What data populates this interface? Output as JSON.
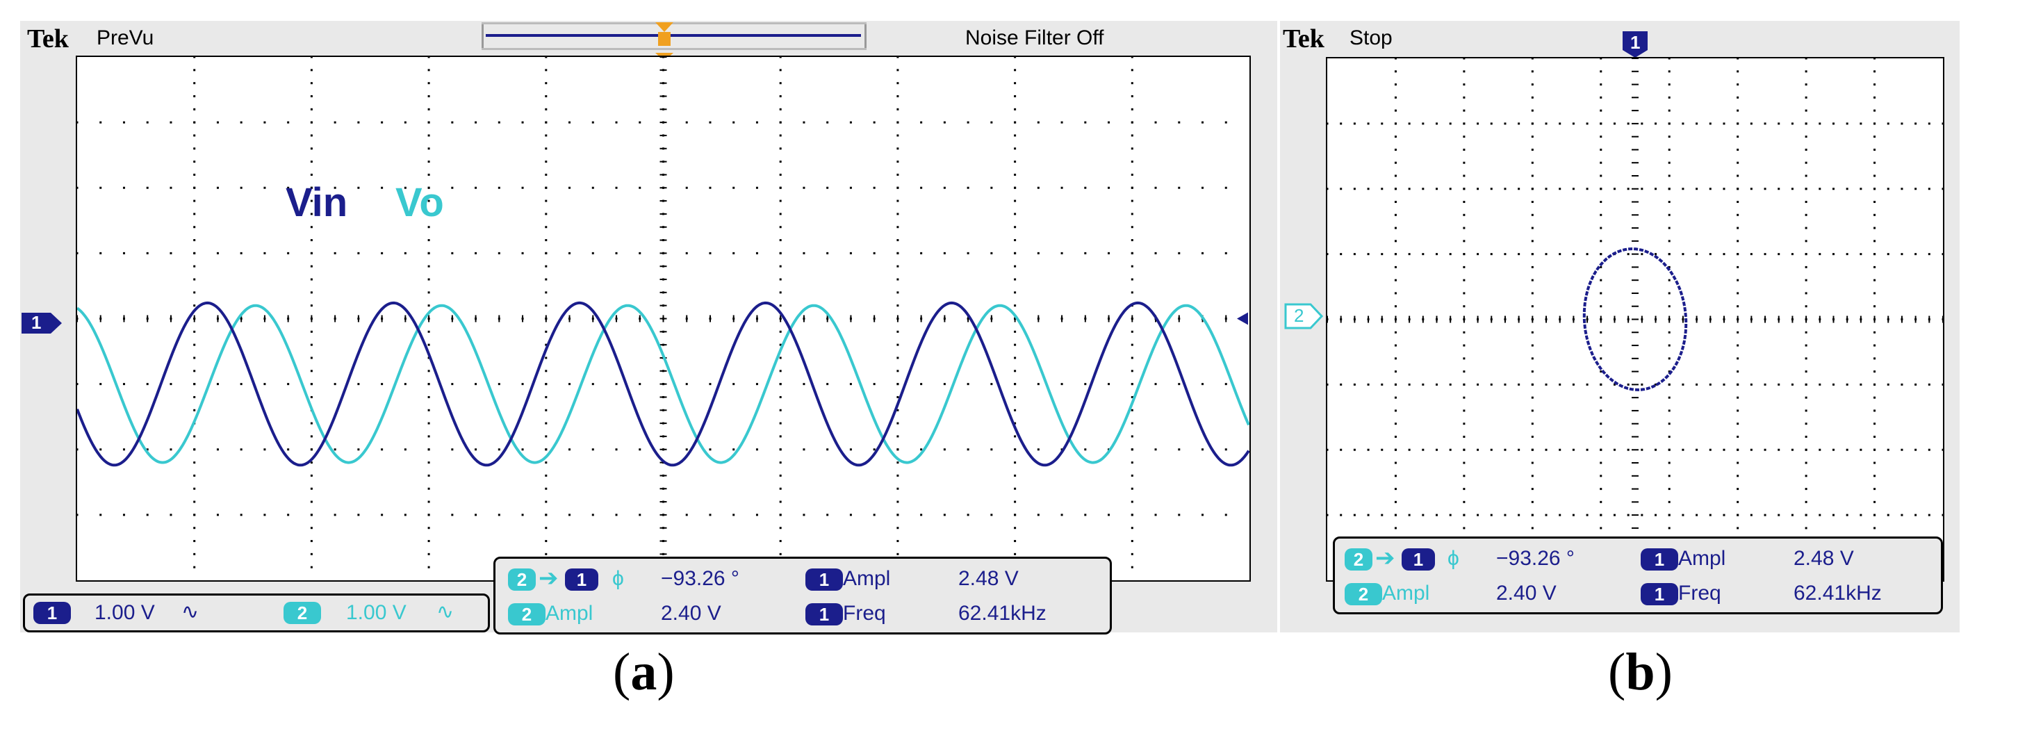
{
  "panel_a": {
    "brand": "Tek",
    "state": "PreVu",
    "noise_filter": "Noise Filter Off",
    "trigger_marker": "T",
    "ch1_marker": "1",
    "legend_vin": "Vin",
    "legend_vo": "Vo",
    "bottom": {
      "ch1_num": "1",
      "ch1_scale": "1.00 V",
      "ch1_coupling": "∿",
      "ch2_num": "2",
      "ch2_scale": "1.00 V",
      "ch2_coupling": "∿"
    },
    "measurements": {
      "phase_from": "2",
      "phase_to": "1",
      "phase_symbol": "ϕ",
      "phase_value": "−93.26 °",
      "ampl1_ch": "1",
      "ampl1_label": "Ampl",
      "ampl1_value": "2.48 V",
      "ampl2_ch": "2",
      "ampl2_label": "Ampl",
      "ampl2_value": "2.40 V",
      "freq_ch": "1",
      "freq_label": "Freq",
      "freq_value": "62.41kHz"
    },
    "caption_open": "(",
    "caption_letter": "a",
    "caption_close": ")"
  },
  "panel_b": {
    "brand": "Tek",
    "state": "Stop",
    "top_marker": "1",
    "ch2_marker": "2",
    "measurements": {
      "phase_from": "2",
      "phase_to": "1",
      "phase_symbol": "ϕ",
      "phase_value": "−93.26 °",
      "ampl1_ch": "1",
      "ampl1_label": "Ampl",
      "ampl1_value": "2.48 V",
      "ampl2_ch": "2",
      "ampl2_label": "Ampl",
      "ampl2_value": "2.40 V",
      "freq_ch": "1",
      "freq_label": "Freq",
      "freq_value": "62.41kHz"
    },
    "caption_open": "(",
    "caption_letter": "b",
    "caption_close": ")"
  },
  "colors": {
    "ch1": "#1b1e8c",
    "ch2": "#39c8cf",
    "trigger": "#f0a020",
    "background": "#e9e9e9"
  },
  "waveforms": {
    "vin_amplitude_div": 1.24,
    "vo_amplitude_div": 1.2,
    "vin_offset_div": 0.0,
    "vo_offset_div": 0.0,
    "phase_deg": -93.26,
    "cycles_on_screen": 6.3
  }
}
